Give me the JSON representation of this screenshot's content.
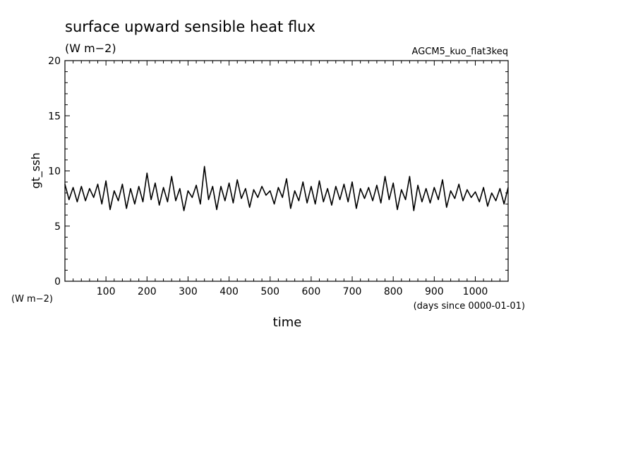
{
  "chart_data": {
    "type": "line",
    "title": "surface upward sensible heat flux",
    "units": "(W m−2)",
    "run_label": "AGCM5_kuo_flat3keq",
    "xlabel": "time",
    "x_units": "(days since 0000-01-01)",
    "ylabel": "gt_ssh",
    "y_units": "(W m−2)",
    "xlim": [
      0,
      1080
    ],
    "ylim": [
      0,
      20
    ],
    "x_ticks": [
      100,
      200,
      300,
      400,
      500,
      600,
      700,
      800,
      900,
      1000
    ],
    "y_ticks": [
      0,
      5,
      10,
      15,
      20
    ],
    "grid": false,
    "series": [
      {
        "x": [
          0,
          10,
          20,
          30,
          40,
          50,
          60,
          70,
          80,
          90,
          100,
          110,
          120,
          130,
          140,
          150,
          160,
          170,
          180,
          190,
          200,
          210,
          220,
          230,
          240,
          250,
          260,
          270,
          280,
          290,
          300,
          310,
          320,
          330,
          340,
          350,
          360,
          370,
          380,
          390,
          400,
          410,
          420,
          430,
          440,
          450,
          460,
          470,
          480,
          490,
          500,
          510,
          520,
          530,
          540,
          550,
          560,
          570,
          580,
          590,
          600,
          610,
          620,
          630,
          640,
          650,
          660,
          670,
          680,
          690,
          700,
          710,
          720,
          730,
          740,
          750,
          760,
          770,
          780,
          790,
          800,
          810,
          820,
          830,
          840,
          850,
          860,
          870,
          880,
          890,
          900,
          910,
          920,
          930,
          940,
          950,
          960,
          970,
          980,
          990,
          1000,
          1010,
          1020,
          1030,
          1040,
          1050,
          1060,
          1070,
          1080
        ],
        "values": [
          8.8,
          7.4,
          8.5,
          7.2,
          8.6,
          7.3,
          8.4,
          7.6,
          8.8,
          7.0,
          9.1,
          6.5,
          8.2,
          7.3,
          8.8,
          6.6,
          8.4,
          7.0,
          8.6,
          7.2,
          9.8,
          7.4,
          8.9,
          6.9,
          8.5,
          7.2,
          9.5,
          7.3,
          8.4,
          6.4,
          8.2,
          7.6,
          8.7,
          7.0,
          10.4,
          7.4,
          8.6,
          6.5,
          8.6,
          7.3,
          8.9,
          7.1,
          9.2,
          7.5,
          8.4,
          6.7,
          8.3,
          7.6,
          8.6,
          7.8,
          8.2,
          7.0,
          8.5,
          7.6,
          9.3,
          6.6,
          8.2,
          7.3,
          9.0,
          7.1,
          8.6,
          7.0,
          9.1,
          7.2,
          8.4,
          6.9,
          8.6,
          7.4,
          8.8,
          7.2,
          9.0,
          6.6,
          8.4,
          7.5,
          8.5,
          7.3,
          8.7,
          7.1,
          9.5,
          7.4,
          8.9,
          6.5,
          8.3,
          7.4,
          9.5,
          6.4,
          8.7,
          7.2,
          8.4,
          7.1,
          8.5,
          7.4,
          9.2,
          6.7,
          8.2,
          7.5,
          8.8,
          7.3,
          8.3,
          7.6,
          8.1,
          7.2,
          8.5,
          6.8,
          8.0,
          7.3,
          8.4,
          7.0,
          8.5
        ]
      }
    ]
  }
}
